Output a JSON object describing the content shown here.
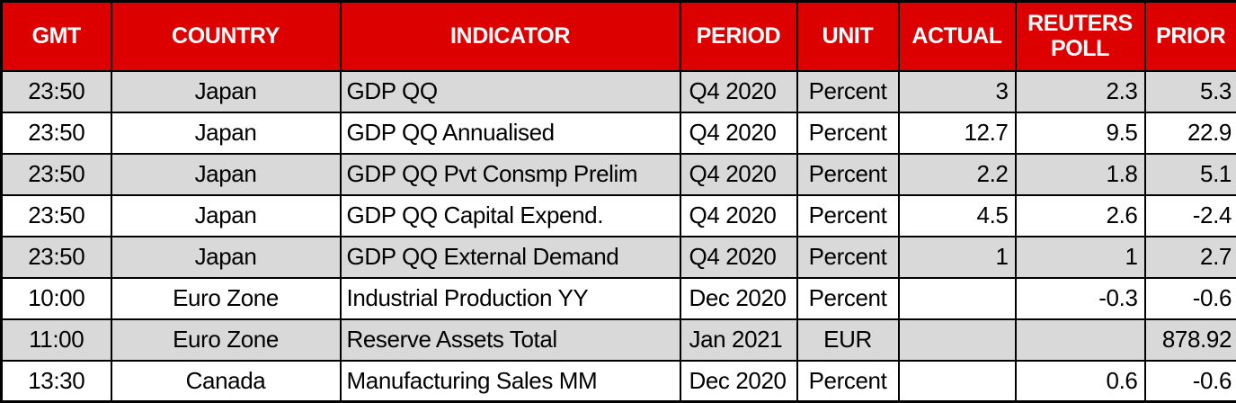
{
  "theme": {
    "header_bg": "#DD0000",
    "header_text": "#FFFFFF",
    "row_alt_bg": "#D9D9D9",
    "row_bg": "#FFFFFF",
    "border": "#000000"
  },
  "chart_data": {
    "type": "table",
    "columns": [
      "GMT",
      "COUNTRY",
      "INDICATOR",
      "PERIOD",
      "UNIT",
      "ACTUAL",
      "REUTERS POLL",
      "PRIOR"
    ],
    "column_keys": [
      "gmt",
      "country",
      "indicator",
      "period",
      "unit",
      "actual",
      "reuters-poll",
      "prior"
    ],
    "rows": [
      [
        "23:50",
        "Japan",
        "GDP QQ",
        "Q4 2020",
        "Percent",
        "3",
        "2.3",
        "5.3"
      ],
      [
        "23:50",
        "Japan",
        "GDP QQ Annualised",
        "Q4 2020",
        "Percent",
        "12.7",
        "9.5",
        "22.9"
      ],
      [
        "23:50",
        "Japan",
        "GDP QQ Pvt Consmp Prelim",
        "Q4 2020",
        "Percent",
        "2.2",
        "1.8",
        "5.1"
      ],
      [
        "23:50",
        "Japan",
        "GDP QQ Capital Expend.",
        "Q4 2020",
        "Percent",
        "4.5",
        "2.6",
        "-2.4"
      ],
      [
        "23:50",
        "Japan",
        "GDP QQ External Demand",
        "Q4 2020",
        "Percent",
        "1",
        "1",
        "2.7"
      ],
      [
        "10:00",
        "Euro Zone",
        "Industrial Production YY",
        "Dec 2020",
        "Percent",
        "",
        "-0.3",
        "-0.6"
      ],
      [
        "11:00",
        "Euro Zone",
        "Reserve Assets Total",
        "Jan 2021",
        "EUR",
        "",
        "",
        "878.92"
      ],
      [
        "13:30",
        "Canada",
        "Manufacturing Sales MM",
        "Dec 2020",
        "Percent",
        "",
        "0.6",
        "-0.6"
      ]
    ]
  }
}
